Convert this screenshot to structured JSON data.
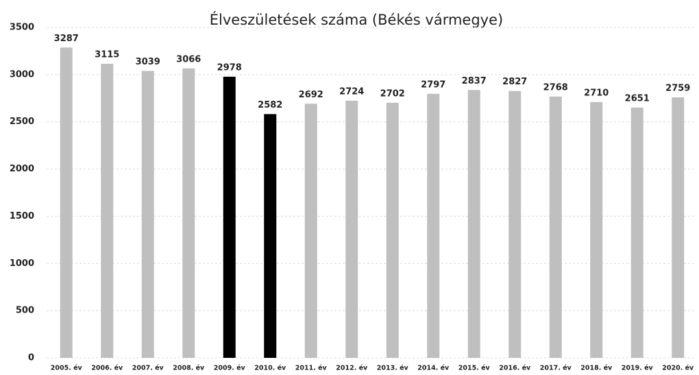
{
  "chart_data": {
    "type": "bar",
    "title": "Élveszületések száma (Békés vármegye)",
    "categories": [
      "2005. év",
      "2006. év",
      "2007. év",
      "2008. év",
      "2009. év",
      "2010. év",
      "2011. év",
      "2012. év",
      "2013. év",
      "2014. év",
      "2015. év",
      "2016. év",
      "2017. év",
      "2018. év",
      "2019. év",
      "2020. év"
    ],
    "values": [
      3287,
      3115,
      3039,
      3066,
      2978,
      2582,
      2692,
      2724,
      2702,
      2797,
      2837,
      2827,
      2768,
      2710,
      2651,
      2759
    ],
    "colors": [
      "#bfbfbf",
      "#bfbfbf",
      "#bfbfbf",
      "#bfbfbf",
      "#000000",
      "#000000",
      "#bfbfbf",
      "#bfbfbf",
      "#bfbfbf",
      "#bfbfbf",
      "#bfbfbf",
      "#bfbfbf",
      "#bfbfbf",
      "#bfbfbf",
      "#bfbfbf",
      "#bfbfbf"
    ],
    "ylim": [
      0,
      3500
    ],
    "yticks": [
      0,
      500,
      1000,
      1500,
      2000,
      2500,
      3000,
      3500
    ],
    "grid": true
  }
}
